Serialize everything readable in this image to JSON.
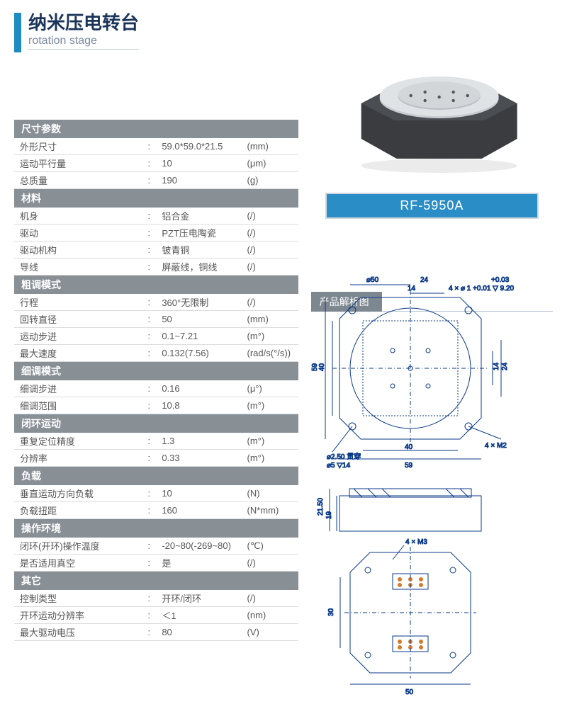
{
  "header": {
    "title_cn": "纳米压电转台",
    "title_en": "rotation stage"
  },
  "model": "RF-5950A",
  "diagram_title": "产品解析图",
  "sections": [
    {
      "name": "尺寸参数",
      "rows": [
        {
          "label": "外形尺寸",
          "value": "59.0*59.0*21.5",
          "unit": "(mm)"
        },
        {
          "label": "运动平行量",
          "value": "10",
          "unit": "(μm)"
        },
        {
          "label": "总质量",
          "value": "190",
          "unit": "(g)"
        }
      ]
    },
    {
      "name": "材料",
      "rows": [
        {
          "label": "机身",
          "value": "铝合金",
          "unit": "(/)"
        },
        {
          "label": "驱动",
          "value": "PZT压电陶瓷",
          "unit": "(/)"
        },
        {
          "label": "驱动机构",
          "value": "铍青铜",
          "unit": "(/)"
        },
        {
          "label": "导线",
          "value": "屏蔽线，铜线",
          "unit": "(/)"
        }
      ]
    },
    {
      "name": "粗调模式",
      "rows": [
        {
          "label": "行程",
          "value": "360°无限制",
          "unit": "(/)"
        },
        {
          "label": "回转直径",
          "value": "50",
          "unit": "(mm)"
        },
        {
          "label": "运动步进",
          "value": "0.1~7.21",
          "unit": "(m°)"
        },
        {
          "label": "最大速度",
          "value": "0.132(7.56)",
          "unit": "(rad/s(°/s))"
        }
      ]
    },
    {
      "name": "细调模式",
      "rows": [
        {
          "label": "细调步进",
          "value": "0.16",
          "unit": "(μ°)"
        },
        {
          "label": "细调范围",
          "value": "10.8",
          "unit": "(m°)"
        }
      ]
    },
    {
      "name": "闭环运动",
      "rows": [
        {
          "label": "重复定位精度",
          "value": "1.3",
          "unit": "(m°)"
        },
        {
          "label": "分辨率",
          "value": "0.33",
          "unit": "(m°)"
        }
      ]
    },
    {
      "name": "负载",
      "rows": [
        {
          "label": "垂直运动方向负载",
          "value": "10",
          "unit": "(N)"
        },
        {
          "label": "负载扭距",
          "value": "160",
          "unit": "(N*mm)"
        }
      ]
    },
    {
      "name": "操作环境",
      "rows": [
        {
          "label": "闭环(开环)操作温度",
          "value": "-20~80(-269~80)",
          "unit": "(℃)"
        },
        {
          "label": "是否适用真空",
          "value": "是",
          "unit": "(/)"
        }
      ]
    },
    {
      "name": "其它",
      "rows": [
        {
          "label": "控制类型",
          "value": "开环/闭环",
          "unit": "(/)"
        },
        {
          "label": "开环运动分辨率",
          "value": "＜1",
          "unit": "(nm)"
        },
        {
          "label": "最大驱动电压",
          "value": "80",
          "unit": "(V)"
        }
      ]
    }
  ],
  "diagram": {
    "top_view": {
      "outer_w": 59,
      "outer_h": 59,
      "circle_d": 50,
      "labels": {
        "d50": "⌀50",
        "dim24": "24",
        "dim14": "14",
        "tol": "+0.03",
        "holes4": "4 × ⌀ 1 +0.01 ▽ 9.20",
        "dim59_left": "59",
        "dim40_2": "40",
        "cb": "⌀2.50 贯穿",
        "cb2": "⌀5 ▽14",
        "dim40": "40",
        "dim59_bottom": "59",
        "m2": "4 × M2",
        "dim14r": "14",
        "dim24r": "24"
      },
      "colors": {
        "stroke": "#0a3a8a",
        "fill_bg": "none"
      }
    },
    "side_view": {
      "h_total": "21.50",
      "h_inner": "19"
    },
    "bottom_view": {
      "m3": "4 × M3",
      "dim30": "30",
      "dim50": "50"
    }
  },
  "colors": {
    "accent": "#1e8bc3",
    "badge": "#2a8dc6",
    "section_bg": "#888f95",
    "border": "#dcdcdc",
    "blueprint": "#0a3a8a"
  }
}
